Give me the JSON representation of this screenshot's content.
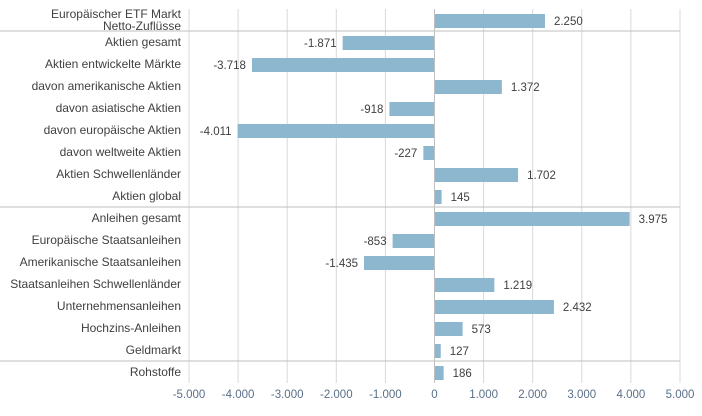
{
  "chart_data": {
    "type": "bar",
    "orientation": "horizontal",
    "categories": [
      "Europäischer ETF Markt\nNetto-Zuflüsse",
      "Aktien gesamt",
      "Aktien entwickelte Märkte",
      "davon amerikanische Aktien",
      "davon asiatische Aktien",
      "davon europäische Aktien",
      "davon weltweite Aktien",
      "Aktien Schwellenländer",
      "Aktien global",
      "Anleihen gesamt",
      "Europäische Staatsanleihen",
      "Amerikanische Staatsanleihen",
      "Staatsanleihen Schwellenländer",
      "Unternehmensanleihen",
      "Hochzins-Anleihen",
      "Geldmarkt",
      "Rohstoffe"
    ],
    "values": [
      2250,
      -1871,
      -3718,
      1372,
      -918,
      -4011,
      -227,
      1702,
      145,
      3975,
      -853,
      -1435,
      1219,
      2432,
      573,
      127,
      186
    ],
    "data_labels": [
      "2.250",
      "-1.871",
      "-3.718",
      "1.372",
      "-918",
      "-4.011",
      "-227",
      "1.702",
      "145",
      "3.975",
      "-853",
      "-1.435",
      "1.219",
      "2.432",
      "573",
      "127",
      "186"
    ],
    "xlim": [
      -5000,
      5000
    ],
    "xticks": [
      -5000,
      -4000,
      -3000,
      -2000,
      -1000,
      0,
      1000,
      2000,
      3000,
      4000,
      5000
    ],
    "xtick_labels": [
      "-5.000",
      "-4.000",
      "-3.000",
      "-2.000",
      "-1.000",
      "0",
      "1.000",
      "2.000",
      "3.000",
      "4.000",
      "5.000"
    ],
    "group_separators_after": [
      0,
      8,
      15
    ],
    "grid": true,
    "legend": "none",
    "title": "",
    "xlabel": "",
    "ylabel": "",
    "colors": {
      "bar": "#8db6cf",
      "label": "#404040",
      "tick": "#5a6f8a",
      "grid": "#d9d9d9"
    }
  }
}
